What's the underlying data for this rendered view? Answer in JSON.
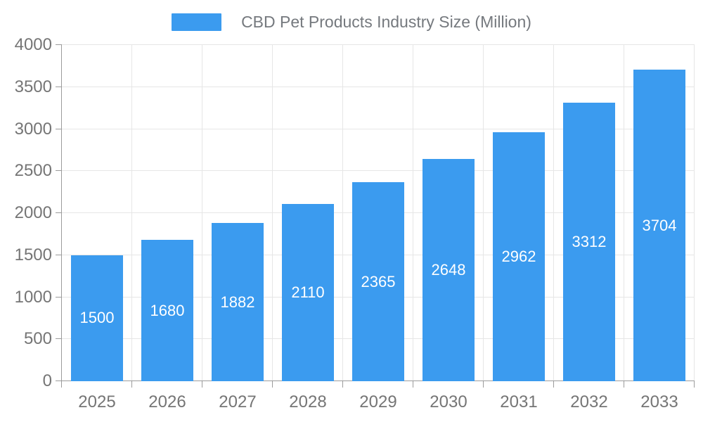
{
  "chart_data": {
    "type": "bar",
    "title": "CBD Pet Products Industry Size (Million)",
    "legend": "CBD Pet Products Industry Size (Million)",
    "legend_position": "top",
    "categories": [
      "2025",
      "2026",
      "2027",
      "2028",
      "2029",
      "2030",
      "2031",
      "2032",
      "2033"
    ],
    "values": [
      1500,
      1680,
      1882,
      2110,
      2365,
      2648,
      2962,
      3312,
      3704
    ],
    "xlabel": "",
    "ylabel": "",
    "ylim": [
      0,
      4000
    ],
    "ytick_interval": 500,
    "ytick_labels": [
      "0",
      "500",
      "1000",
      "1500",
      "2000",
      "2500",
      "3000",
      "3500",
      "4000"
    ],
    "grid": true,
    "value_labels_position": "inside-center",
    "colors": {
      "bar": "#3b9bef",
      "grid": "#e6e6e6",
      "axis": "#9b9b9b",
      "tick_label": "#757575",
      "legend_text": "#75797e",
      "value_label": "#ffffff"
    }
  }
}
